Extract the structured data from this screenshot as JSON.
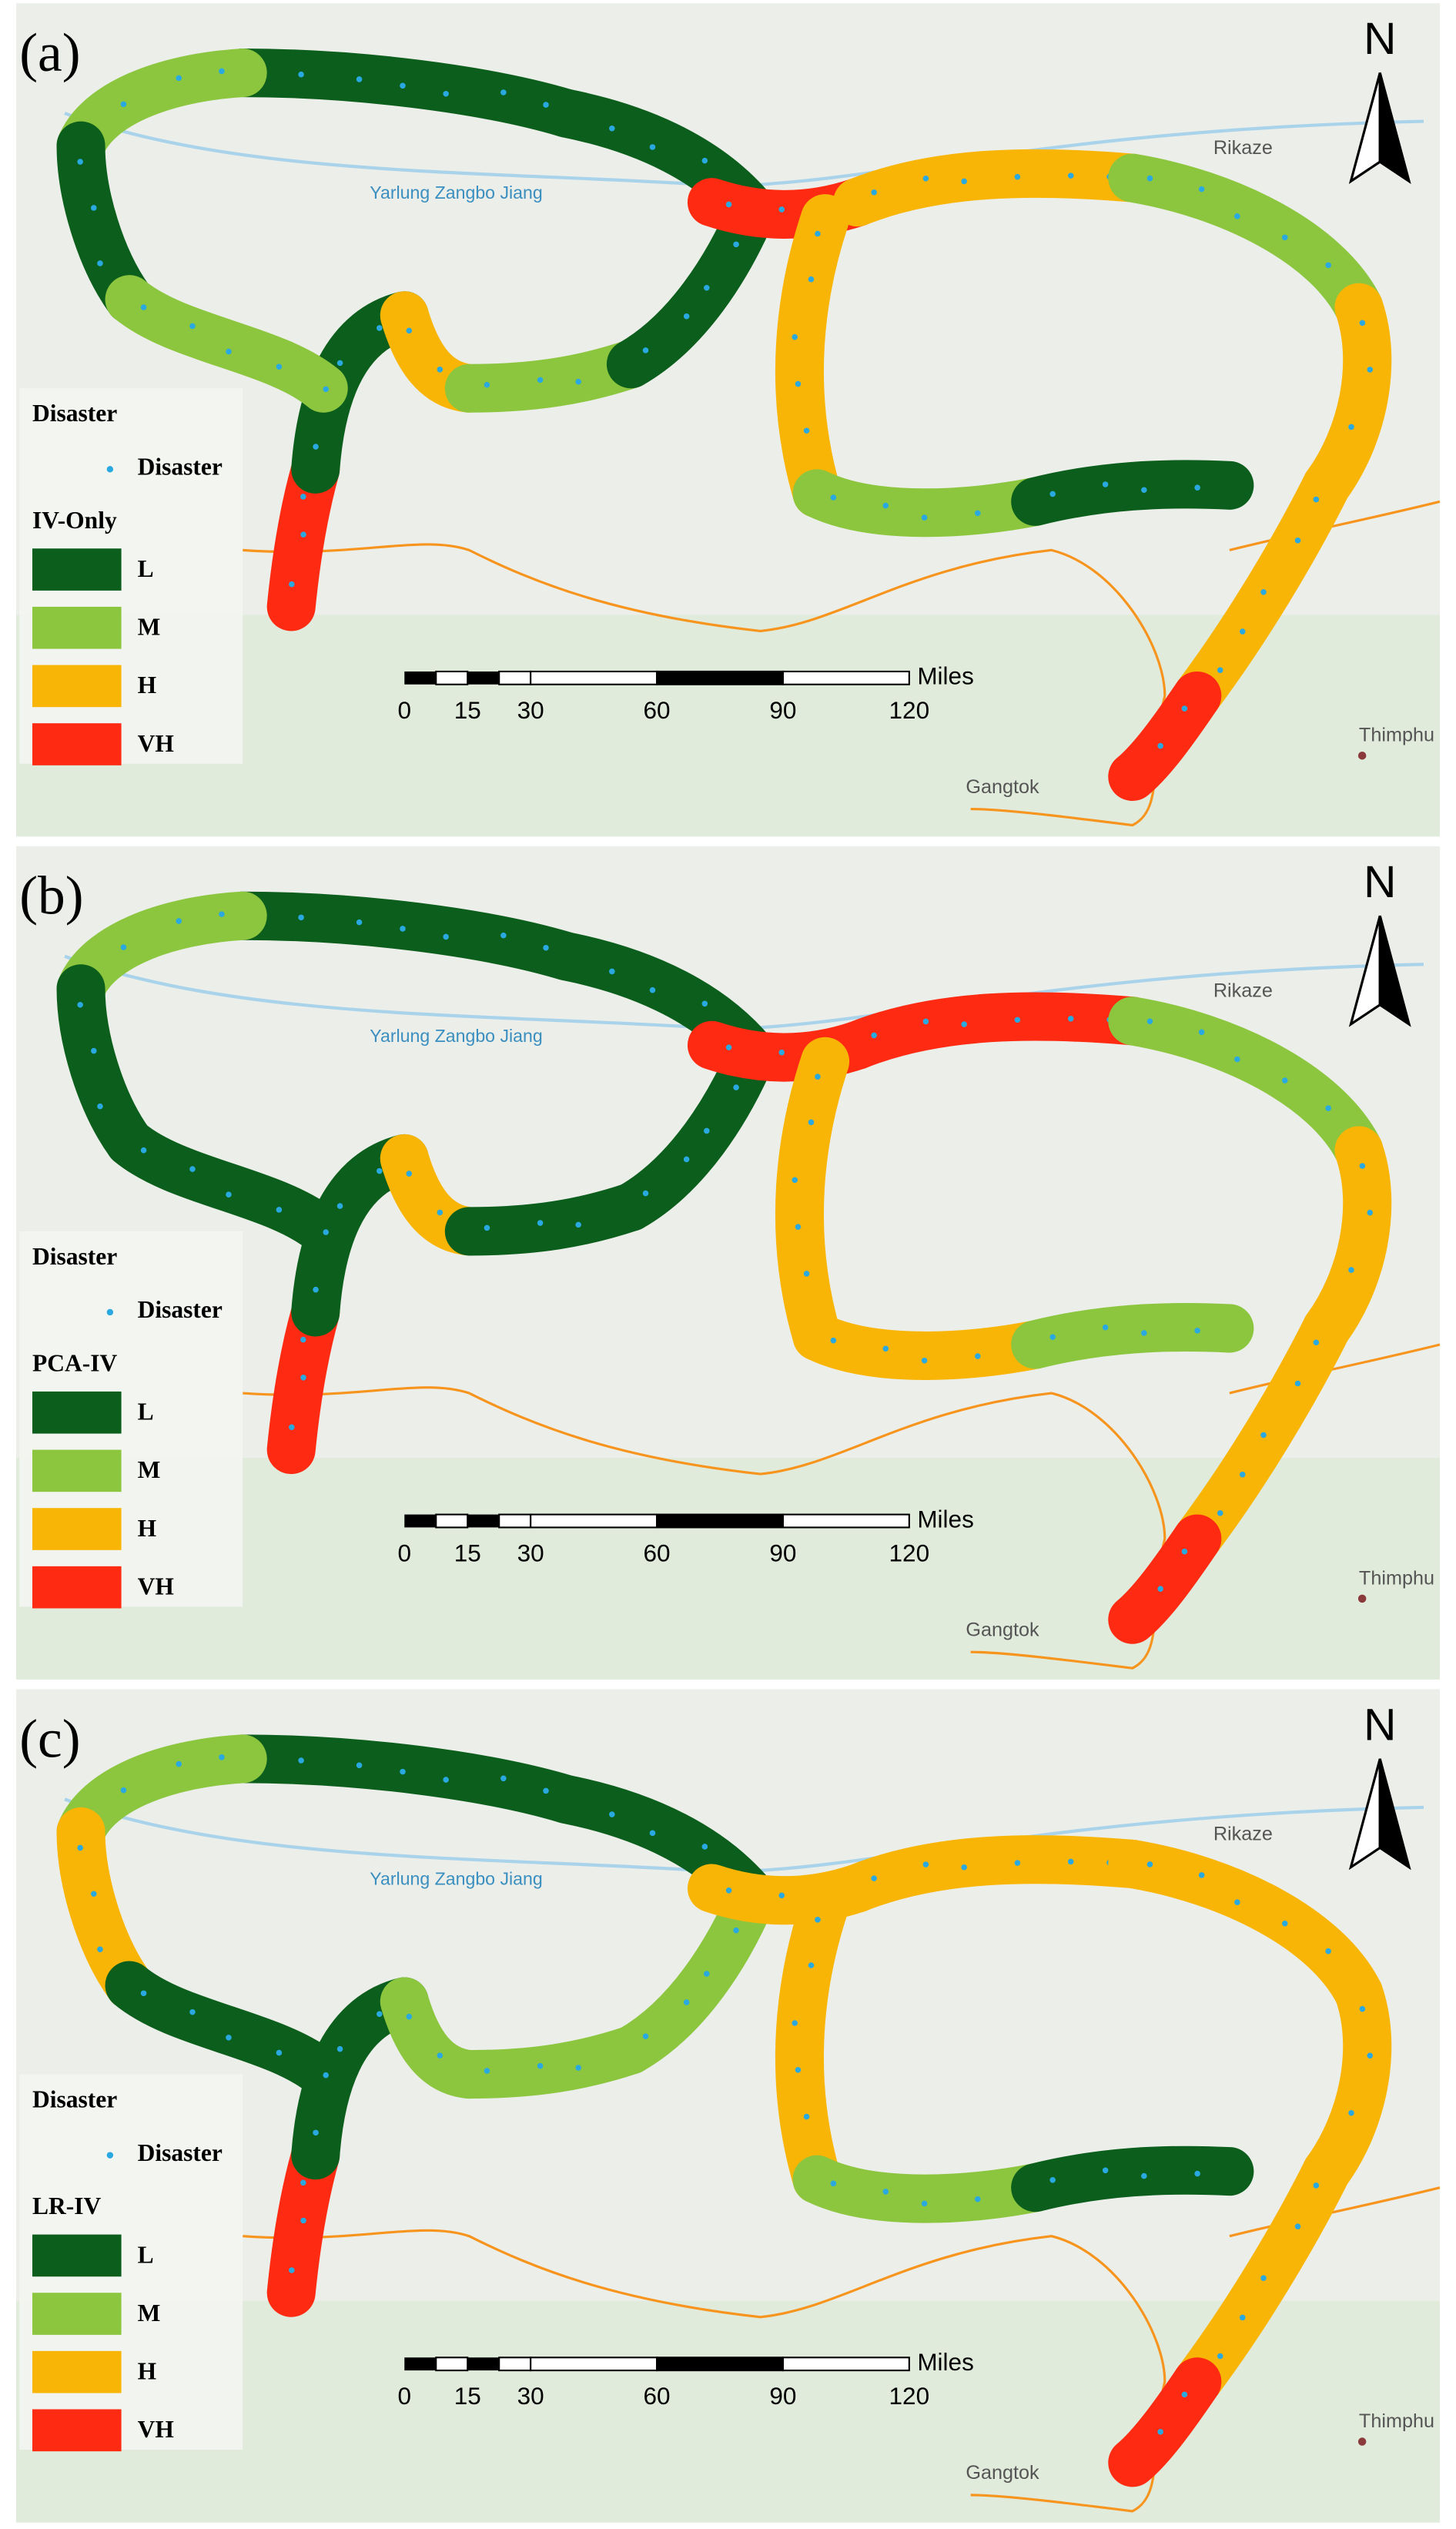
{
  "panels": [
    {
      "label": "(a)",
      "legend_title": "IV-Only"
    },
    {
      "label": "(b)",
      "legend_title": "PCA-IV"
    },
    {
      "label": "(c)",
      "legend_title": "LR-IV"
    }
  ],
  "legend": {
    "disaster_heading": "Disaster",
    "disaster_item": "Disaster",
    "classes": [
      {
        "label": "L",
        "color": "#0b5e1b"
      },
      {
        "label": "M",
        "color": "#8cc63f"
      },
      {
        "label": "H",
        "color": "#f9b506"
      },
      {
        "label": "VH",
        "color": "#fe2a12"
      }
    ]
  },
  "map_labels": {
    "river": "Yarlung Zangbo Jiang",
    "city_1": "Rikaze",
    "city_2": "Thimphu",
    "city_3": "Gangtok"
  },
  "scale_bar": {
    "ticks": [
      0,
      15,
      30,
      60,
      90,
      120
    ],
    "unit": "Miles"
  },
  "north": "N"
}
